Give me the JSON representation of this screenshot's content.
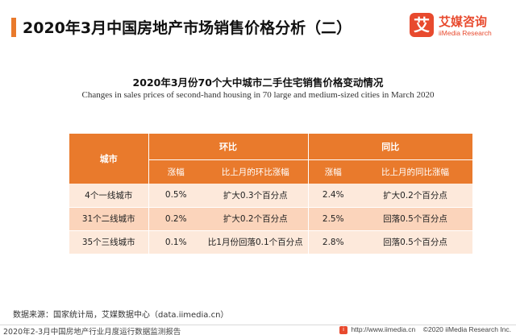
{
  "header": {
    "title": "2020年3月中国房地产市场销售价格分析（二）",
    "logo": {
      "mark": "艾",
      "name_cn": "艾媒咨询",
      "name_en": "iiMedia Research",
      "colors": {
        "brand": "#e84a2e"
      }
    }
  },
  "subtitle": {
    "cn": "2020年3月份70个大中城市二手住宅销售价格变动情况",
    "en": "Changes in sales prices of second-hand housing in 70 large and medium-sized cities in March 2020"
  },
  "table": {
    "city_header": "城市",
    "group_mom": "环比",
    "group_yoy": "同比",
    "sub_headers": [
      "涨幅",
      "比上月的环比涨幅",
      "涨幅",
      "比上月的同比涨幅"
    ],
    "rows": [
      {
        "city": "4个一线城市",
        "mom": "0.5%",
        "mom_change": "扩大0.3个百分点",
        "yoy": "2.4%",
        "yoy_change": "扩大0.2个百分点"
      },
      {
        "city": "31个二线城市",
        "mom": "0.2%",
        "mom_change": "扩大0.2个百分点",
        "yoy": "2.5%",
        "yoy_change": "回落0.5个百分点"
      },
      {
        "city": "35个三线城市",
        "mom": "0.1%",
        "mom_change": "比1月份回落0.1个百分点",
        "yoy": "2.8%",
        "yoy_change": "回落0.5个百分点"
      }
    ],
    "colors": {
      "header": "#e97a2c",
      "row_light": "#fde9db",
      "row_dark": "#fbd4bb"
    }
  },
  "source": "数据来源：国家统计局，艾媒数据中心（data.iimedia.cn）",
  "footer": {
    "left": "2020年2-3月中国房地产行业月度运行数据监测报告",
    "right_url": "http://www.iimedia.cn",
    "right_copy": "©2020  iiMedia Research  Inc."
  }
}
